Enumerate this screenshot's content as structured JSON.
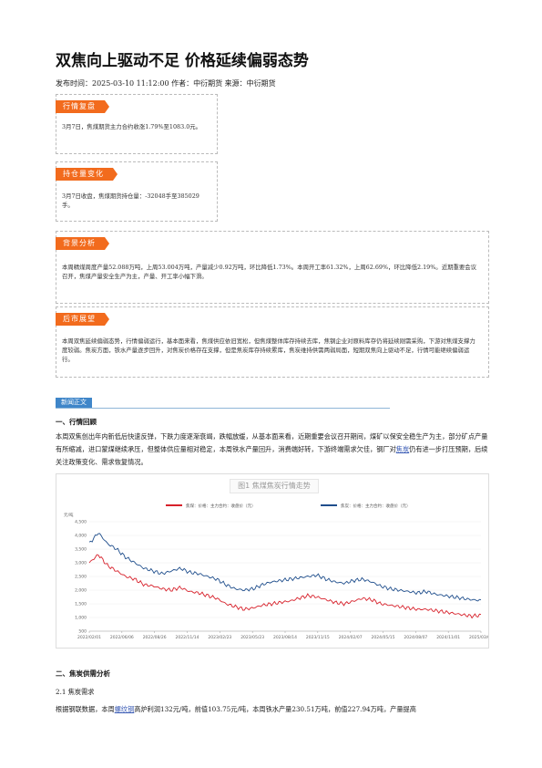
{
  "article": {
    "title": "双焦向上驱动不足 价格延续偏弱态势",
    "meta": "发布时间：2025-03-10 11:12:00 作者：中衍期货 来源：中衍期货"
  },
  "boxes": [
    {
      "label": "行情复盘",
      "text": "3月7日，焦煤期货主力合约收涨1.79%至1083.0元。"
    },
    {
      "label": "持仓量变化",
      "text": "3月7日收盘，焦煤期货持仓量：-32048手至385029手。"
    },
    {
      "label": "背景分析",
      "text": "本周精煤周度产量52.088万吨，上周53.004万吨，产量减少0.92万吨，环比降低1.73%。本周开工率61.32%，上周62.69%，环比降低2.19%。近期重要会议召开，焦煤产量安全生产为主，产量、开工率小幅下滑。"
    },
    {
      "label": "后市展望",
      "text": "本周双焦延续偏弱态势，行情偏弱运行，基本面来看，焦煤供应依旧宽松，但焦煤整体库存持续去库，焦钢企业对原料库存仍将延续刚需采购，下游对焦煤支撑力度较弱。焦炭方面，铁水产量逐步回升，对焦炭价格存在支撑，但是焦炭库存持续累库，焦炭维持供需两弱局面，短期双焦向上驱动不足，行情可能继续偏弱运行。"
    }
  ],
  "news_label": "新闻正文",
  "section1": {
    "heading": "一、行情回顾",
    "para_before": "本周双焦创出年内新低后快速反弹，下跌力度逐渐衰竭，跌幅放缓，从基本面来看，近期重要会议召开期间，煤矿以保安全稳生产为主，部分矿点产量有所缩减，进口蒙煤继续承压，但整体供应量相对稳定，本周铁水产量回升，消费端好转，下游终端需求欠佳，钢厂对",
    "link": "焦炭",
    "para_after": "仍有进一步打压预期，后续关注政策变化、需求恢复情况。"
  },
  "chart_data": {
    "type": "line",
    "title": "图1 焦煤焦炭行情走势",
    "ylabel_unit": "元/吨",
    "ylim": [
      500,
      4500
    ],
    "yticks": [
      "4,500",
      "4,000",
      "3,500",
      "3,000",
      "2,500",
      "2,000",
      "1,500",
      "1,000",
      "500"
    ],
    "x_ticks": [
      "2022/02/01",
      "2022/06/06",
      "2022/08/26",
      "2022/11/14",
      "2023/02/23",
      "2023/05/23",
      "2023/08/14",
      "2023/11/15",
      "2024/02/07",
      "2024/05/15",
      "2024/08/07",
      "2024/11/01",
      "2025/03/07"
    ],
    "series": [
      {
        "name": "焦煤：价格：主力合约：收盘价（元）",
        "color": "#d7202a",
        "values": [
          3000,
          3300,
          2900,
          2700,
          2500,
          2400,
          2200,
          2150,
          2050,
          2000,
          2100,
          1950,
          1900,
          1800,
          1700,
          1500,
          1400,
          1300,
          1350,
          1450,
          1500,
          1550,
          1600,
          1700,
          1800,
          1750,
          1650,
          1550,
          1500,
          1600,
          1700,
          1650,
          1500,
          1450,
          1400,
          1350,
          1300,
          1300,
          1250,
          1200,
          1150,
          1100,
          1050,
          1083
        ]
      },
      {
        "name": "焦炭：价格：主力合约：收盘价（元）",
        "color": "#1f4e8c",
        "values": [
          3700,
          4100,
          3700,
          3500,
          3200,
          3000,
          2800,
          2700,
          2600,
          2700,
          2800,
          2650,
          2600,
          2500,
          2400,
          2200,
          2050,
          2000,
          2050,
          2200,
          2300,
          2350,
          2400,
          2450,
          2500,
          2550,
          2400,
          2300,
          2250,
          2350,
          2400,
          2300,
          2150,
          2050,
          2000,
          1950,
          1900,
          1950,
          1850,
          1800,
          1750,
          1700,
          1650,
          1620
        ]
      }
    ]
  },
  "section2": {
    "heading": "二、焦炭供需分析",
    "sub": "2.1 焦炭需求",
    "para_before": "根据钢联数据，本周",
    "link": "螺纹钢",
    "para_after": "高炉利润132元/吨，前值103.75元/吨，本周铁水产量230.51万吨，前值227.94万吨，产量提高"
  }
}
